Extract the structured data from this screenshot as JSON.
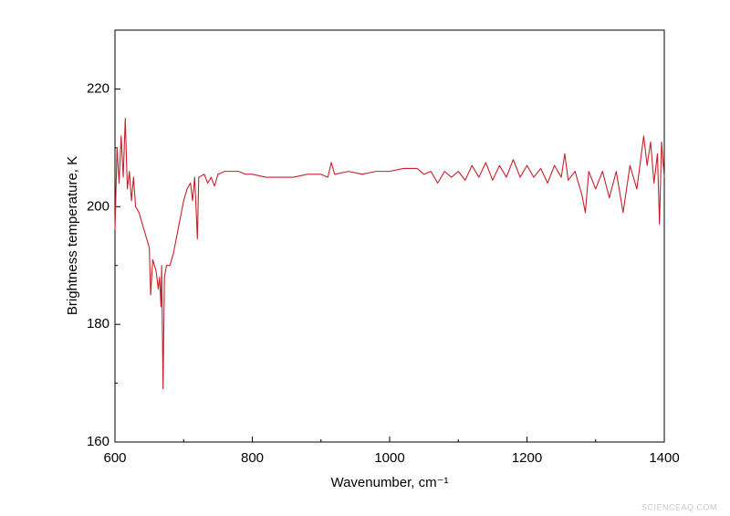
{
  "chart_data": {
    "type": "line",
    "x_label": "Wavenumber, cm⁻¹",
    "y_label": "Brightness temperature, K",
    "watermark": "SCIENCEAQ.COM",
    "x": [
      600,
      603,
      606,
      609,
      612,
      615,
      618,
      621,
      624,
      627,
      630,
      635,
      640,
      645,
      650,
      652,
      655,
      660,
      663,
      665,
      667,
      668,
      670,
      672,
      675,
      680,
      685,
      690,
      695,
      700,
      705,
      710,
      713,
      716,
      718,
      720,
      722,
      730,
      735,
      740,
      745,
      750,
      760,
      770,
      780,
      790,
      800,
      820,
      840,
      860,
      880,
      900,
      910,
      915,
      920,
      940,
      960,
      980,
      1000,
      1020,
      1040,
      1050,
      1060,
      1070,
      1080,
      1090,
      1100,
      1110,
      1120,
      1130,
      1140,
      1150,
      1160,
      1170,
      1180,
      1190,
      1200,
      1210,
      1220,
      1230,
      1240,
      1250,
      1255,
      1260,
      1270,
      1280,
      1285,
      1290,
      1300,
      1310,
      1320,
      1330,
      1340,
      1350,
      1360,
      1370,
      1375,
      1380,
      1385,
      1390,
      1393,
      1396,
      1400
    ],
    "series": [
      {
        "color": "#c8202a",
        "values": [
          196,
          210,
          204,
          212,
          205,
          215,
          203,
          206,
          201,
          205,
          200,
          199,
          197,
          195,
          193,
          185,
          191,
          189,
          186,
          188,
          183,
          190,
          169,
          188,
          190,
          190,
          192,
          195,
          198,
          201,
          203,
          204,
          201,
          205,
          200,
          194.5,
          205,
          205.5,
          204,
          205,
          203.5,
          205.5,
          206,
          206,
          206,
          205.5,
          205.5,
          205,
          205,
          205,
          205.5,
          205.5,
          205,
          207.5,
          205.5,
          206,
          205.5,
          206,
          206,
          206.5,
          206.5,
          205.5,
          206,
          204,
          206,
          205,
          206,
          204.5,
          207,
          205,
          207.5,
          204.5,
          207,
          205,
          208,
          205,
          207,
          205,
          206.5,
          204,
          207,
          205,
          209,
          204.5,
          206,
          202,
          199,
          206,
          203,
          206,
          201.5,
          206,
          199,
          207,
          203,
          212,
          207,
          211,
          204,
          209,
          197,
          211,
          205
        ]
      }
    ],
    "xlim": [
      600,
      1400
    ],
    "xticks": [
      600,
      800,
      1000,
      1200,
      1400
    ],
    "xminor": [
      700,
      900,
      1100,
      1300
    ],
    "ylim": [
      160,
      230
    ],
    "yticks": [
      160,
      180,
      200,
      220
    ],
    "yminor": [
      170,
      190,
      210
    ]
  }
}
